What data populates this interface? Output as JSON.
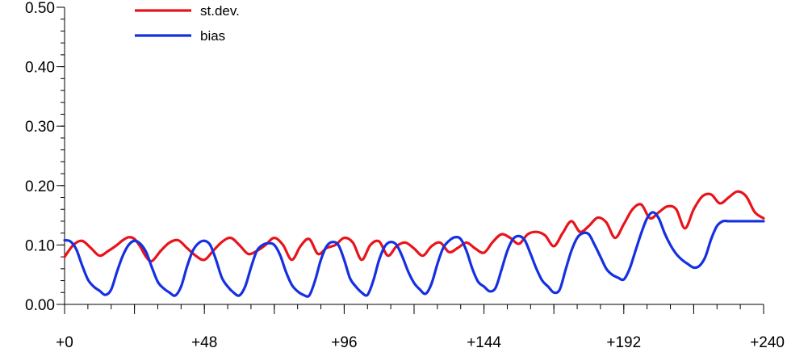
{
  "chart_data": {
    "type": "line",
    "title": "",
    "xlabel": "",
    "ylabel": "",
    "xlim": [
      0,
      240
    ],
    "ylim": [
      0,
      0.5
    ],
    "x_ticks": [
      0,
      48,
      96,
      144,
      192,
      240
    ],
    "x_tick_labels": [
      "+0",
      "+48",
      "+96",
      "+144",
      "+192",
      "+240"
    ],
    "y_ticks": [
      0,
      0.1,
      0.2,
      0.3,
      0.4,
      0.5
    ],
    "y_tick_labels": [
      "0.00",
      "0.10",
      "0.20",
      "0.30",
      "0.40",
      "0.50"
    ],
    "grid": false,
    "legend_position": "top-left",
    "series": [
      {
        "name": "st.dev.",
        "color": "#e8141b",
        "x": [
          0,
          3,
          6,
          9,
          12,
          15,
          18,
          20,
          22,
          24,
          26,
          28,
          30,
          33,
          36,
          39,
          42,
          45,
          48,
          51,
          54,
          57,
          60,
          63,
          66,
          69,
          72,
          75,
          78,
          81,
          84,
          87,
          90,
          93,
          96,
          99,
          102,
          105,
          108,
          111,
          114,
          117,
          120,
          123,
          126,
          129,
          132,
          135,
          138,
          141,
          144,
          147,
          150,
          153,
          156,
          159,
          162,
          165,
          168,
          171,
          174,
          177,
          180,
          183,
          186,
          189,
          192,
          195,
          198,
          201,
          204,
          207,
          210,
          213,
          216,
          219,
          222,
          225,
          228,
          231,
          234,
          237,
          240
        ],
        "y": [
          0.08,
          0.1,
          0.107,
          0.095,
          0.082,
          0.09,
          0.1,
          0.108,
          0.113,
          0.11,
          0.097,
          0.08,
          0.073,
          0.09,
          0.104,
          0.108,
          0.095,
          0.082,
          0.075,
          0.09,
          0.105,
          0.112,
          0.1,
          0.085,
          0.09,
          0.1,
          0.112,
          0.1,
          0.075,
          0.098,
          0.11,
          0.085,
          0.095,
          0.1,
          0.112,
          0.104,
          0.075,
          0.1,
          0.106,
          0.082,
          0.098,
          0.104,
          0.094,
          0.082,
          0.098,
          0.104,
          0.088,
          0.095,
          0.104,
          0.094,
          0.087,
          0.105,
          0.118,
          0.112,
          0.102,
          0.118,
          0.122,
          0.116,
          0.098,
          0.12,
          0.14,
          0.122,
          0.132,
          0.146,
          0.138,
          0.112,
          0.135,
          0.16,
          0.168,
          0.145,
          0.155,
          0.165,
          0.16,
          0.128,
          0.16,
          0.182,
          0.185,
          0.17,
          0.18,
          0.19,
          0.182,
          0.155,
          0.145
        ]
      },
      {
        "name": "bias",
        "color": "#1530e0",
        "x": [
          0,
          2,
          4,
          6,
          8,
          10,
          12,
          14,
          16,
          18,
          20,
          22,
          24,
          26,
          28,
          30,
          32,
          34,
          36,
          38,
          40,
          42,
          44,
          46,
          48,
          50,
          52,
          54,
          56,
          58,
          60,
          62,
          64,
          66,
          68,
          70,
          72,
          74,
          76,
          78,
          80,
          82,
          84,
          86,
          88,
          90,
          92,
          94,
          96,
          98,
          100,
          102,
          104,
          106,
          108,
          110,
          112,
          114,
          116,
          118,
          120,
          122,
          124,
          126,
          128,
          130,
          132,
          134,
          136,
          138,
          140,
          142,
          144,
          146,
          148,
          150,
          152,
          154,
          156,
          158,
          160,
          162,
          164,
          166,
          168,
          170,
          172,
          174,
          176,
          178,
          180,
          182,
          184,
          186,
          188,
          190,
          192,
          194,
          196,
          198,
          200,
          202,
          204,
          206,
          208,
          210,
          212,
          214,
          216,
          218,
          220,
          222,
          224,
          226,
          228,
          230,
          232,
          234,
          236,
          238,
          240
        ],
        "y": [
          0.108,
          0.106,
          0.093,
          0.066,
          0.042,
          0.03,
          0.023,
          0.016,
          0.025,
          0.055,
          0.082,
          0.1,
          0.107,
          0.102,
          0.088,
          0.062,
          0.038,
          0.027,
          0.02,
          0.015,
          0.03,
          0.063,
          0.09,
          0.103,
          0.107,
          0.1,
          0.075,
          0.045,
          0.03,
          0.02,
          0.015,
          0.03,
          0.062,
          0.09,
          0.1,
          0.103,
          0.1,
          0.083,
          0.055,
          0.033,
          0.022,
          0.016,
          0.015,
          0.04,
          0.075,
          0.098,
          0.105,
          0.1,
          0.075,
          0.044,
          0.03,
          0.02,
          0.016,
          0.04,
          0.075,
          0.098,
          0.105,
          0.1,
          0.08,
          0.055,
          0.036,
          0.025,
          0.018,
          0.035,
          0.068,
          0.095,
          0.107,
          0.113,
          0.11,
          0.09,
          0.06,
          0.038,
          0.03,
          0.022,
          0.028,
          0.058,
          0.09,
          0.11,
          0.115,
          0.108,
          0.085,
          0.06,
          0.04,
          0.03,
          0.02,
          0.025,
          0.058,
          0.09,
          0.112,
          0.12,
          0.118,
          0.1,
          0.08,
          0.06,
          0.05,
          0.045,
          0.042,
          0.06,
          0.09,
          0.12,
          0.145,
          0.155,
          0.145,
          0.12,
          0.1,
          0.085,
          0.075,
          0.068,
          0.062,
          0.065,
          0.08,
          0.11,
          0.132,
          0.14,
          0.14,
          0.14,
          0.14,
          0.14,
          0.14,
          0.14,
          0.14
        ]
      }
    ]
  }
}
